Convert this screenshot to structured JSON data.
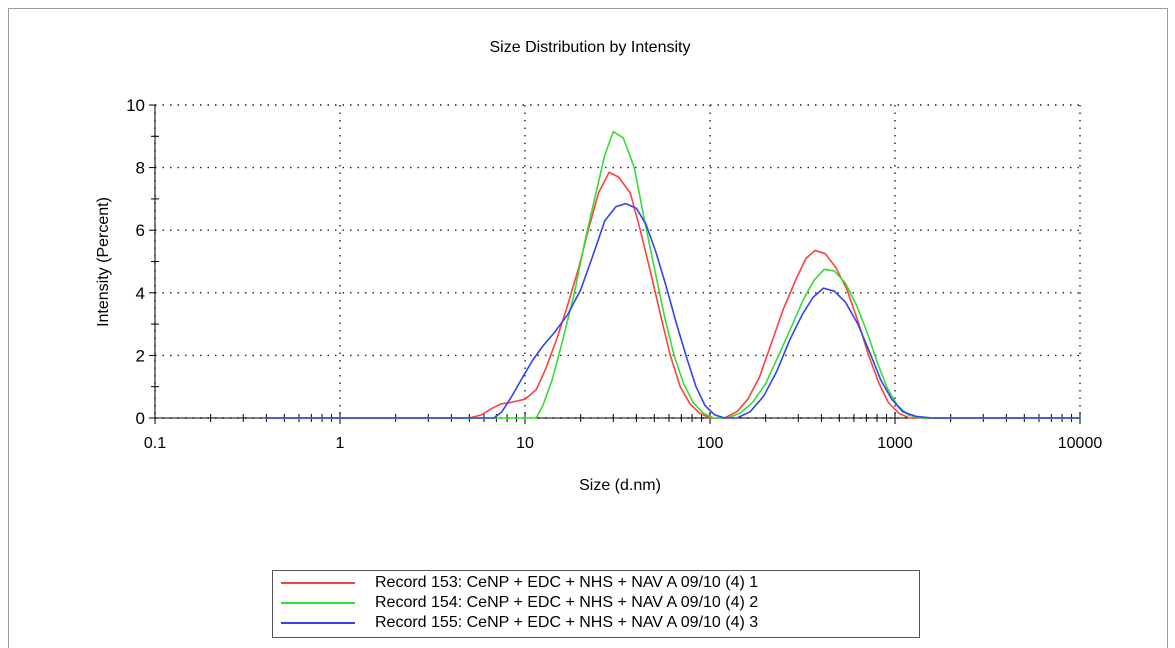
{
  "chart_data": {
    "type": "line",
    "title": "Size Distribution by Intensity",
    "xlabel": "Size (d.nm)",
    "ylabel": "Intensity (Percent)",
    "x_scale": "log",
    "xlim": [
      0.1,
      10000
    ],
    "ylim": [
      0,
      10
    ],
    "x_ticks": [
      "0.1",
      "1",
      "10",
      "100",
      "1000",
      "10000"
    ],
    "y_ticks": [
      "0",
      "2",
      "4",
      "6",
      "8",
      "10"
    ],
    "grid": "dotted",
    "legend_position": "bottom",
    "series": [
      {
        "name": "Record 153: CeNP + EDC + NHS + NAV A 09/10 (4) 1",
        "color": "#ff4040",
        "points": [
          [
            0.4,
            0
          ],
          [
            5,
            0
          ],
          [
            5.8,
            0.1
          ],
          [
            6.6,
            0.3
          ],
          [
            7.4,
            0.45
          ],
          [
            8.4,
            0.5
          ],
          [
            10,
            0.6
          ],
          [
            11.5,
            0.9
          ],
          [
            13,
            1.6
          ],
          [
            15,
            2.6
          ],
          [
            17,
            3.6
          ],
          [
            19.5,
            4.8
          ],
          [
            22,
            6
          ],
          [
            25,
            7.2
          ],
          [
            28.5,
            7.85
          ],
          [
            32,
            7.7
          ],
          [
            37,
            7.2
          ],
          [
            42,
            6
          ],
          [
            48,
            4.6
          ],
          [
            54,
            3.3
          ],
          [
            61,
            2
          ],
          [
            69,
            1
          ],
          [
            78,
            0.45
          ],
          [
            88,
            0.15
          ],
          [
            100,
            0
          ],
          [
            120,
            0
          ],
          [
            140,
            0.2
          ],
          [
            160,
            0.6
          ],
          [
            185,
            1.3
          ],
          [
            215,
            2.4
          ],
          [
            250,
            3.5
          ],
          [
            290,
            4.4
          ],
          [
            330,
            5.1
          ],
          [
            370,
            5.35
          ],
          [
            420,
            5.25
          ],
          [
            480,
            4.8
          ],
          [
            550,
            4.1
          ],
          [
            630,
            3.1
          ],
          [
            720,
            2
          ],
          [
            820,
            1.1
          ],
          [
            920,
            0.5
          ],
          [
            1050,
            0.15
          ],
          [
            1200,
            0
          ],
          [
            1500,
            0
          ],
          [
            10000,
            0
          ]
        ]
      },
      {
        "name": "Record 154: CeNP + EDC + NHS + NAV A 09/10 (4) 2",
        "color": "#33dd33",
        "points": [
          [
            0.4,
            0
          ],
          [
            11.5,
            0
          ],
          [
            12.5,
            0.4
          ],
          [
            14,
            1.2
          ],
          [
            16,
            2.5
          ],
          [
            18.5,
            4
          ],
          [
            21,
            5.6
          ],
          [
            24,
            7.1
          ],
          [
            27,
            8.4
          ],
          [
            30,
            9.15
          ],
          [
            34,
            8.95
          ],
          [
            39,
            8
          ],
          [
            44,
            6.4
          ],
          [
            50,
            4.8
          ],
          [
            57,
            3.2
          ],
          [
            64,
            2
          ],
          [
            72,
            1.1
          ],
          [
            81,
            0.5
          ],
          [
            92,
            0.15
          ],
          [
            105,
            0
          ],
          [
            125,
            0
          ],
          [
            145,
            0.15
          ],
          [
            170,
            0.5
          ],
          [
            200,
            1.1
          ],
          [
            235,
            2
          ],
          [
            275,
            2.9
          ],
          [
            320,
            3.8
          ],
          [
            365,
            4.4
          ],
          [
            415,
            4.75
          ],
          [
            470,
            4.7
          ],
          [
            540,
            4.3
          ],
          [
            620,
            3.6
          ],
          [
            710,
            2.7
          ],
          [
            810,
            1.7
          ],
          [
            910,
            0.95
          ],
          [
            1030,
            0.4
          ],
          [
            1180,
            0.1
          ],
          [
            1350,
            0
          ],
          [
            1600,
            0
          ],
          [
            10000,
            0
          ]
        ]
      },
      {
        "name": "Record 155: CeNP + EDC + NHS + NAV A 09/10 (4) 3",
        "color": "#3344ee",
        "points": [
          [
            0.4,
            0
          ],
          [
            6.8,
            0
          ],
          [
            7.5,
            0.2
          ],
          [
            8.5,
            0.7
          ],
          [
            9.7,
            1.3
          ],
          [
            11,
            1.85
          ],
          [
            12.5,
            2.3
          ],
          [
            14.5,
            2.75
          ],
          [
            17,
            3.3
          ],
          [
            20,
            4.1
          ],
          [
            23,
            5.1
          ],
          [
            27,
            6.3
          ],
          [
            31,
            6.75
          ],
          [
            35,
            6.85
          ],
          [
            40,
            6.7
          ],
          [
            45,
            6.2
          ],
          [
            51,
            5.3
          ],
          [
            58,
            4.2
          ],
          [
            66,
            3
          ],
          [
            75,
            1.9
          ],
          [
            84,
            1
          ],
          [
            94,
            0.4
          ],
          [
            106,
            0.1
          ],
          [
            120,
            0
          ],
          [
            140,
            0
          ],
          [
            165,
            0.2
          ],
          [
            195,
            0.7
          ],
          [
            230,
            1.5
          ],
          [
            270,
            2.5
          ],
          [
            315,
            3.3
          ],
          [
            360,
            3.85
          ],
          [
            410,
            4.15
          ],
          [
            470,
            4.05
          ],
          [
            540,
            3.7
          ],
          [
            630,
            3
          ],
          [
            730,
            2.1
          ],
          [
            840,
            1.2
          ],
          [
            960,
            0.6
          ],
          [
            1100,
            0.2
          ],
          [
            1300,
            0.05
          ],
          [
            1600,
            0
          ],
          [
            10000,
            0
          ]
        ]
      }
    ]
  }
}
